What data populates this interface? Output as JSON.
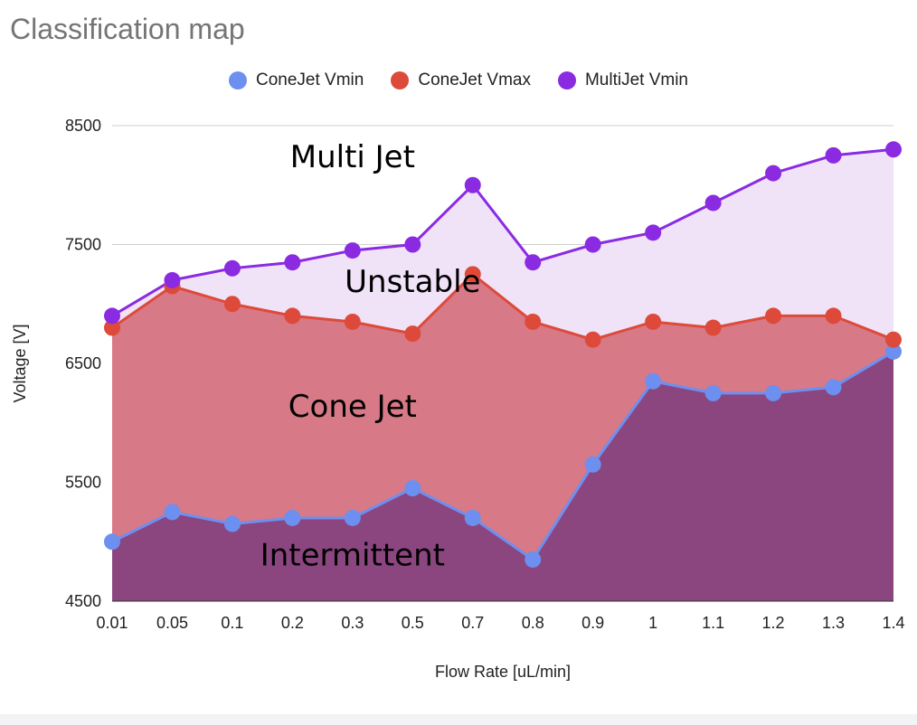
{
  "chart_data": {
    "type": "area",
    "title": "Classification map",
    "xlabel": "Flow Rate [uL/min]",
    "ylabel": "Voltage [V]",
    "ylim": [
      4500,
      8500
    ],
    "yticks": [
      "4500",
      "5500",
      "6500",
      "7500",
      "8500"
    ],
    "grid": true,
    "legend_position": "top",
    "categories": [
      "0.01",
      "0.05",
      "0.1",
      "0.2",
      "0.3",
      "0.5",
      "0.7",
      "0.8",
      "0.9",
      "1",
      "1.1",
      "1.2",
      "1.3",
      "1.4"
    ],
    "series": [
      {
        "name": "ConeJet Vmin",
        "color": "#6d8ff0",
        "values": [
          5000,
          5250,
          5150,
          5200,
          5200,
          5450,
          5200,
          4850,
          5650,
          6350,
          6250,
          6250,
          6300,
          6600
        ]
      },
      {
        "name": "ConeJet Vmax",
        "color": "#de4a3a",
        "values": [
          6800,
          7150,
          7000,
          6900,
          6850,
          6750,
          7250,
          6850,
          6700,
          6850,
          6800,
          6900,
          6900,
          6700
        ]
      },
      {
        "name": "MultiJet Vmin",
        "color": "#8a2be2",
        "values": [
          6900,
          7200,
          7300,
          7350,
          7450,
          7500,
          8000,
          7350,
          7500,
          7600,
          7850,
          8100,
          8250,
          8300
        ]
      }
    ],
    "fill_colors": {
      "below_conejet_vmin": "#8b4680",
      "conejet_band": "#d77986",
      "unstable_band": "#f0e3f8"
    },
    "annotations": [
      {
        "text": "Multi Jet",
        "x": "0.3",
        "y": 8150
      },
      {
        "text": "Unstable",
        "x": "0.5",
        "y": 7100
      },
      {
        "text": "Cone Jet",
        "x": "0.3",
        "y": 6050
      },
      {
        "text": "Intermittent",
        "x": "0.3",
        "y": 4800
      }
    ]
  }
}
